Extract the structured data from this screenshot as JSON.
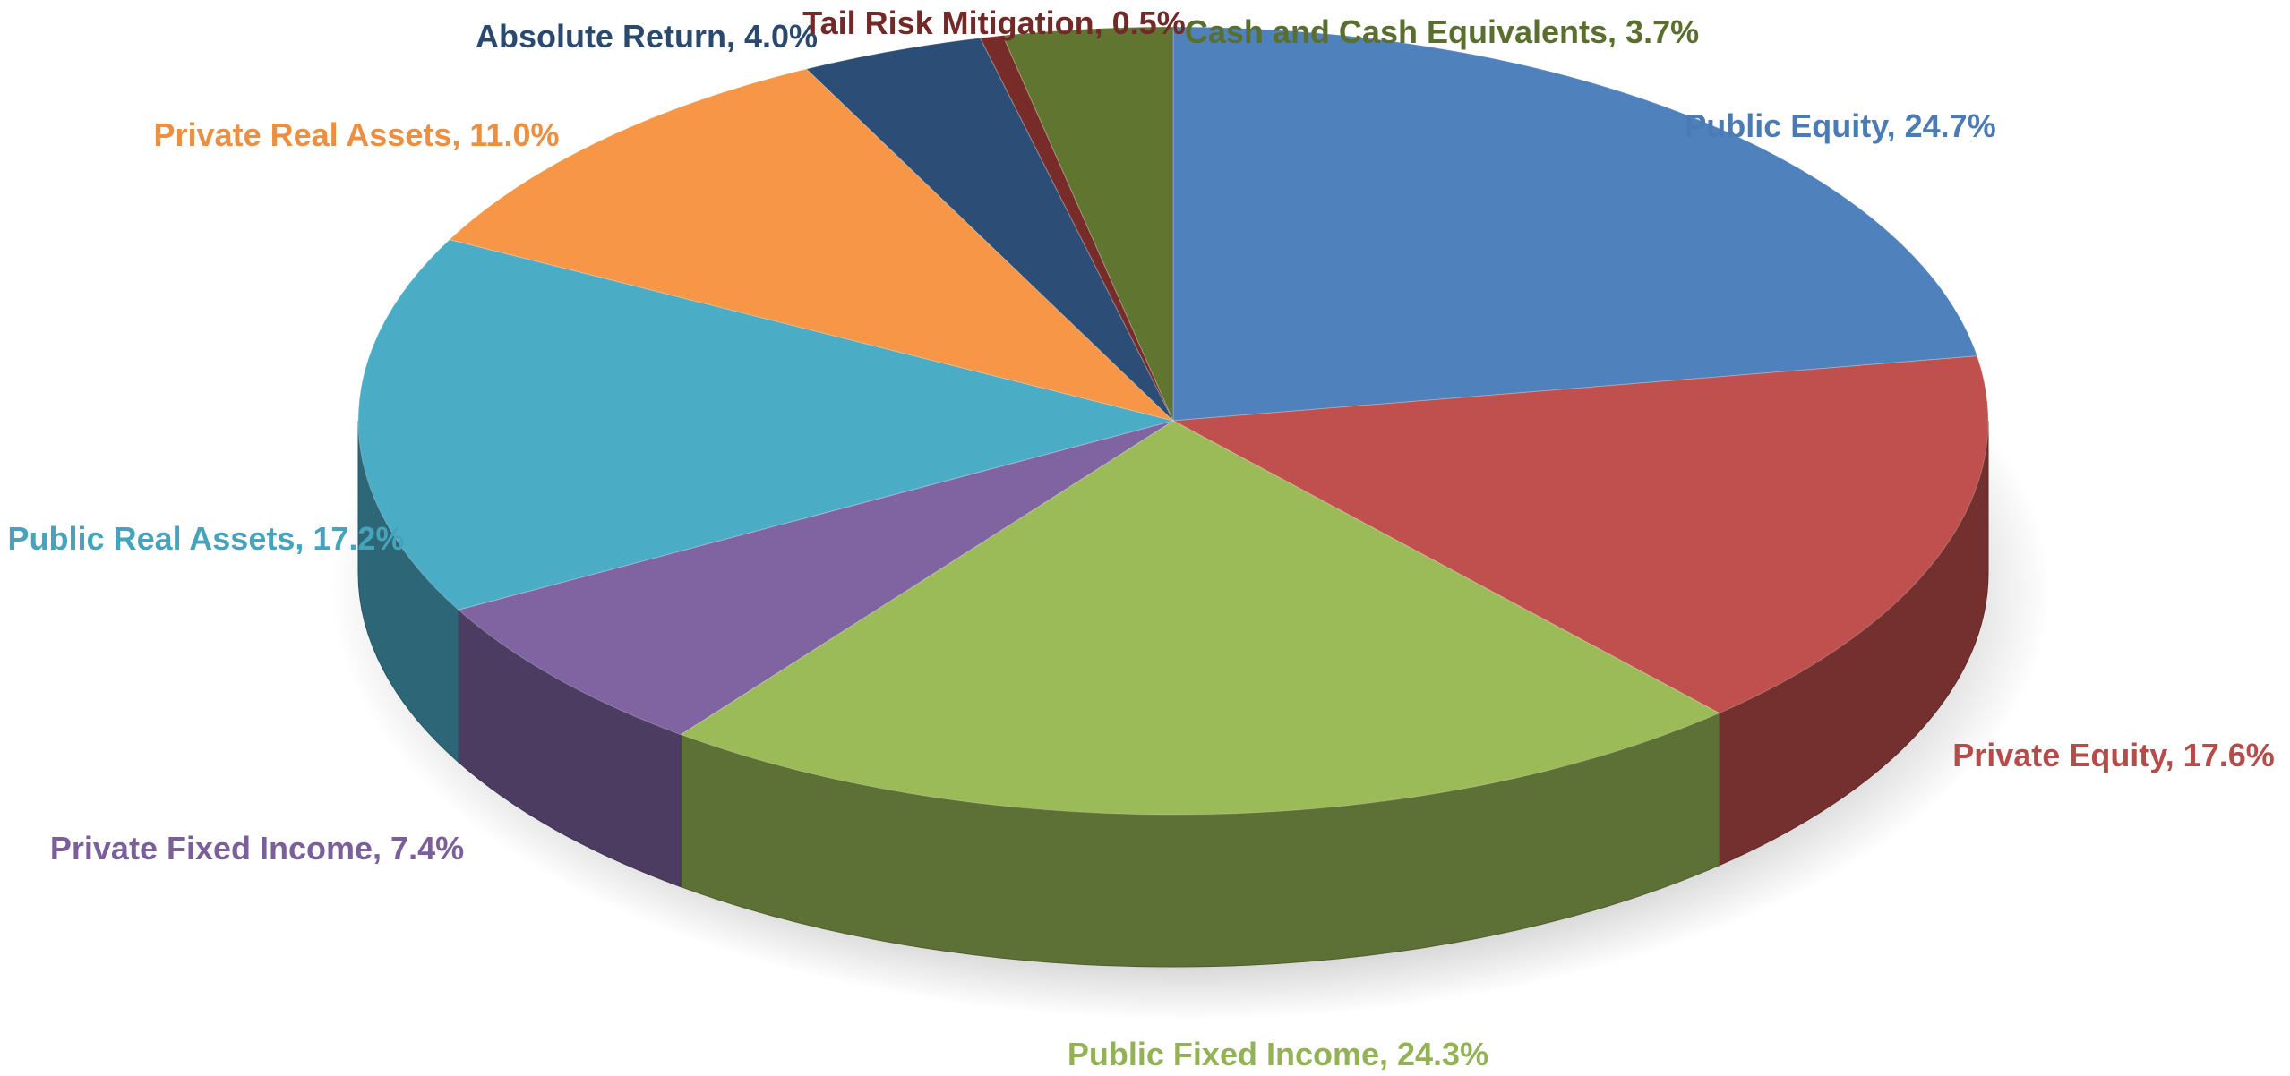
{
  "chart_data": {
    "type": "pie3d",
    "categories": [
      "Public Equity",
      "Private Equity",
      "Public Fixed Income",
      "Private Fixed Income",
      "Public Real Assets",
      "Private Real Assets",
      "Absolute Return",
      "Tail Risk Mitigation",
      "Cash and Cash Equivalents"
    ],
    "values": [
      24.7,
      17.6,
      24.3,
      7.4,
      17.2,
      11.0,
      4.0,
      0.5,
      3.7
    ],
    "value_labels": [
      "24.7%",
      "17.6%",
      "24.3%",
      "7.4%",
      "17.2%",
      "11.0%",
      "4.0%",
      "0.5%",
      "3.7%"
    ],
    "colors": [
      "#4f81bd",
      "#c0504d",
      "#9bbb59",
      "#8064a2",
      "#4bacc6",
      "#f79646",
      "#2c4d75",
      "#772c2a",
      "#5f7530"
    ]
  }
}
